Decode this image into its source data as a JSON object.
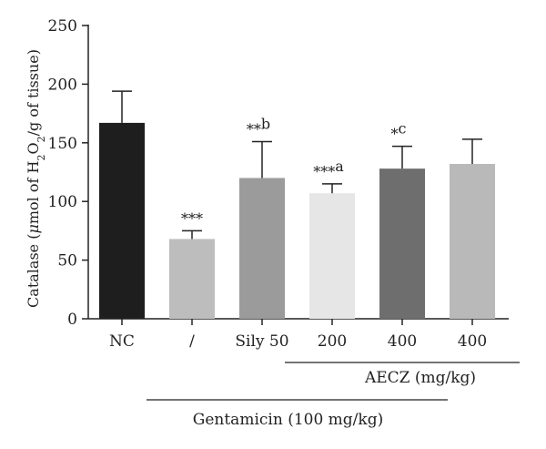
{
  "chart_data": {
    "type": "bar",
    "ylabel": {
      "prefix": "Catalase (",
      "mu": "μ",
      "mid": "mol of H",
      "sub1": "2",
      "mid2": "O",
      "sub2": "2",
      "suffix": "/g of tissue)"
    },
    "ylim": [
      0,
      250
    ],
    "yticks": [
      "0",
      "50",
      "100",
      "150",
      "200",
      "250"
    ],
    "categories": [
      "NC",
      "/",
      "Sily 50",
      "200",
      "400",
      "400"
    ],
    "values": [
      167,
      68,
      120,
      107,
      128,
      132
    ],
    "errors": [
      27,
      7,
      31,
      8,
      19,
      21
    ],
    "colors": [
      "#1e1e1e",
      "#bdbdbd",
      "#9b9b9b",
      "#e6e6e6",
      "#6e6e6e",
      "#b9b9b9"
    ],
    "annotations": [
      "",
      "***",
      "**b",
      "***a",
      "*c",
      ""
    ],
    "groups": [
      {
        "label": "AECZ (mg/kg)",
        "from": 3,
        "to": 5
      },
      {
        "label": "Gentamicin (100 mg/kg)",
        "from": 1,
        "to": 4
      }
    ],
    "grid": false,
    "legend": "none"
  }
}
